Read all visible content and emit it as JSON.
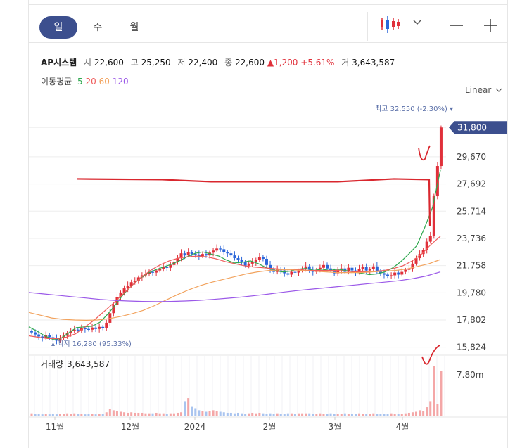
{
  "period_tabs": [
    "일",
    "주",
    "월"
  ],
  "active_tab": 0,
  "toolbar": {
    "chart_icon": "candlestick-icon",
    "dropdown_icon": "chevron-down-icon",
    "zoom_out_icon": "minus-icon",
    "zoom_in_icon": "plus-icon"
  },
  "quote": {
    "name": "AP시스템",
    "open_label": "시",
    "open": "22,600",
    "high_label": "고",
    "high": "25,250",
    "low_label": "저",
    "low": "22,400",
    "close_label": "종",
    "close": "22,600",
    "change": "▲1,200",
    "change_pct": "+5.61%",
    "volume_label": "거",
    "volume": "3,643,587"
  },
  "moving_average": {
    "label": "이동평균",
    "periods": [
      "5",
      "20",
      "60",
      "120"
    ],
    "colors": [
      "#2fa84f",
      "#ef5b5b",
      "#f2a35e",
      "#9b59e8"
    ]
  },
  "scale_label": "Linear",
  "colors": {
    "up": "#e0303a",
    "down": "#2b66d9",
    "accent": "#3c4f8e",
    "volume": "#f4a7a7",
    "volume_down": "#a9c4ef",
    "hand_line": "#d9272e"
  },
  "chart_data": {
    "type": "candlestick",
    "y_ticks": [
      "31,800",
      "29,670",
      "27,692",
      "25,714",
      "23,736",
      "21,758",
      "19,780",
      "17,802",
      "15,824"
    ],
    "y_tick_values": [
      31800,
      29670,
      27692,
      25714,
      23736,
      21758,
      19780,
      17802,
      15824
    ],
    "ylim": [
      15500,
      33400
    ],
    "x_ticks": [
      "11월",
      "12월",
      "2024",
      "2월",
      "3월",
      "4월"
    ],
    "current_price_label": "31,800",
    "high_annotation": "최고 32,550 (-2.30%)",
    "low_annotation": "최저 16,280 (95.33%)",
    "volume_label": "거래량",
    "volume_value": "3,643,587",
    "volume_tick": "7.80m",
    "close_series": [
      16900,
      16750,
      16600,
      16500,
      16700,
      16550,
      16450,
      16300,
      16500,
      16650,
      16850,
      17000,
      17100,
      17050,
      17200,
      17150,
      17100,
      17250,
      17150,
      17300,
      17200,
      17600,
      18300,
      18900,
      19450,
      19800,
      20100,
      20300,
      20550,
      20650,
      20900,
      21050,
      21150,
      21300,
      21250,
      21400,
      21500,
      21650,
      21600,
      21800,
      22000,
      22300,
      22650,
      22500,
      22750,
      22600,
      22550,
      22450,
      22600,
      22500,
      22700,
      22850,
      23000,
      22950,
      22750,
      22650,
      22500,
      22300,
      22150,
      22050,
      21750,
      21900,
      22000,
      22150,
      22400,
      22250,
      21800,
      21500,
      21300,
      21500,
      21400,
      21200,
      21100,
      21300,
      21250,
      21400,
      21500,
      21700,
      21450,
      21300,
      21450,
      21600,
      21800,
      21550,
      21400,
      21200,
      21450,
      21550,
      21300,
      21600,
      21400,
      21250,
      21500,
      21650,
      21400,
      21500,
      21700,
      21350,
      21200,
      21100,
      21000,
      21050,
      21250,
      21100,
      21300,
      21450,
      21550,
      21900,
      22300,
      22600,
      22900,
      23500,
      23900,
      26800,
      29000,
      31800
    ],
    "ma_series": [
      {
        "name": "5",
        "values": [
          17300,
          17000,
          16650,
          16400,
          16450,
          16850,
          17250,
          17300,
          17350,
          17650,
          18250,
          18950,
          19700,
          20300,
          20800,
          21200,
          21450,
          21650,
          21850,
          22100,
          22400,
          22650,
          22750,
          22600,
          22450,
          22150,
          21950,
          22000,
          22100,
          21900,
          21600,
          21400,
          21300,
          21350,
          21500,
          21550,
          21400,
          21500,
          21400,
          21500,
          21400,
          21300,
          21200,
          21100,
          21150,
          21300,
          21600,
          22050,
          22600,
          23200,
          24500,
          26000,
          28700
        ]
      },
      {
        "name": "20",
        "values": [
          16650,
          16550,
          16450,
          16450,
          16550,
          16800,
          17300,
          17800,
          18400,
          19000,
          19650,
          20300,
          20900,
          21400,
          21800,
          22100,
          22300,
          22400,
          22450,
          22400,
          22250,
          22050,
          21900,
          21750,
          21650,
          21600,
          21550,
          21500,
          21500,
          21450,
          21400,
          21400,
          21400,
          21400,
          21350,
          21300,
          21300,
          21350,
          21400,
          21550,
          21750,
          22100,
          22600,
          23300,
          23900
        ]
      },
      {
        "name": "60",
        "values": [
          18350,
          18150,
          17950,
          17850,
          17800,
          17780,
          17800,
          17900,
          18050,
          18250,
          18500,
          18850,
          19250,
          19650,
          20000,
          20300,
          20550,
          20750,
          20950,
          21150,
          21300,
          21400,
          21450,
          21450,
          21400,
          21350,
          21300,
          21250,
          21250,
          21250,
          21300,
          21350,
          21400,
          21500,
          21700,
          21900,
          22200
        ]
      },
      {
        "name": "120",
        "values": [
          19800,
          19700,
          19600,
          19500,
          19400,
          19300,
          19230,
          19180,
          19150,
          19140,
          19150,
          19180,
          19230,
          19300,
          19380,
          19470,
          19580,
          19700,
          19830,
          19950,
          20050,
          20150,
          20250,
          20350,
          20450,
          20550,
          20650,
          20800,
          21000,
          21300
        ]
      }
    ],
    "hand_drawn_line_value": 27700,
    "volume_series": [
      0.06,
      0.05,
      0.05,
      0.04,
      0.05,
      0.04,
      0.05,
      0.04,
      0.05,
      0.05,
      0.06,
      0.05,
      0.06,
      0.05,
      0.05,
      0.04,
      0.05,
      0.05,
      0.04,
      0.05,
      0.05,
      0.08,
      0.15,
      0.12,
      0.1,
      0.09,
      0.08,
      0.07,
      0.08,
      0.07,
      0.07,
      0.07,
      0.06,
      0.06,
      0.06,
      0.07,
      0.06,
      0.06,
      0.05,
      0.06,
      0.06,
      0.07,
      0.08,
      0.3,
      0.36,
      0.2,
      0.16,
      0.12,
      0.1,
      0.09,
      0.1,
      0.12,
      0.1,
      0.09,
      0.08,
      0.07,
      0.07,
      0.06,
      0.07,
      0.06,
      0.05,
      0.06,
      0.07,
      0.06,
      0.07,
      0.06,
      0.05,
      0.06,
      0.05,
      0.06,
      0.05,
      0.05,
      0.06,
      0.06,
      0.05,
      0.06,
      0.06,
      0.06,
      0.06,
      0.05,
      0.05,
      0.06,
      0.05,
      0.05,
      0.06,
      0.05,
      0.05,
      0.05,
      0.06,
      0.05,
      0.05,
      0.05,
      0.06,
      0.05,
      0.05,
      0.05,
      0.06,
      0.05,
      0.05,
      0.05,
      0.05,
      0.06,
      0.05,
      0.05,
      0.05,
      0.06,
      0.07,
      0.08,
      0.09,
      0.12,
      0.1,
      0.18,
      0.3,
      1.0,
      0.25,
      0.9
    ]
  }
}
